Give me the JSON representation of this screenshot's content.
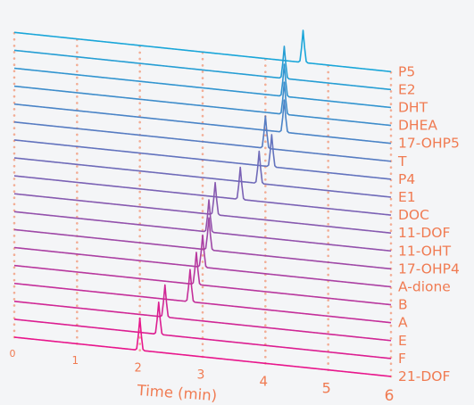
{
  "chart_data": {
    "type": "line",
    "style": "stacked-3d-chromatograms",
    "xlabel": "Time (min)",
    "xlim": [
      0,
      6
    ],
    "x_ticks": [
      "0",
      "1",
      "2",
      "3",
      "4",
      "5",
      "6"
    ],
    "grid": "vertical dotted",
    "legend": "right, labels at line ends",
    "colors": {
      "front": "#e8168c",
      "back": "#1aa6d9",
      "text": "#f07b52",
      "grid": "#f2a184"
    },
    "series": [
      {
        "name": "P5",
        "peak_time": 4.6
      },
      {
        "name": "E2",
        "peak_time": 4.3
      },
      {
        "name": "DHT",
        "peak_time": 4.3
      },
      {
        "name": "DHEA",
        "peak_time": 4.3
      },
      {
        "name": "17-OHP5",
        "peak_time": 4.3
      },
      {
        "name": "T",
        "peak_time": 4.0
      },
      {
        "name": "P4",
        "peak_time": 4.1
      },
      {
        "name": "E1",
        "peak_time": 3.9
      },
      {
        "name": "DOC",
        "peak_time": 3.6
      },
      {
        "name": "11-DOF",
        "peak_time": 3.2
      },
      {
        "name": "11-OHT",
        "peak_time": 3.1
      },
      {
        "name": "17-OHP4",
        "peak_time": 3.1
      },
      {
        "name": "A-dione",
        "peak_time": 3.0
      },
      {
        "name": "B",
        "peak_time": 2.9
      },
      {
        "name": "A",
        "peak_time": 2.8
      },
      {
        "name": "E",
        "peak_time": 2.4
      },
      {
        "name": "F",
        "peak_time": 2.3
      },
      {
        "name": "21-DOF",
        "peak_time": 2.0
      }
    ]
  }
}
